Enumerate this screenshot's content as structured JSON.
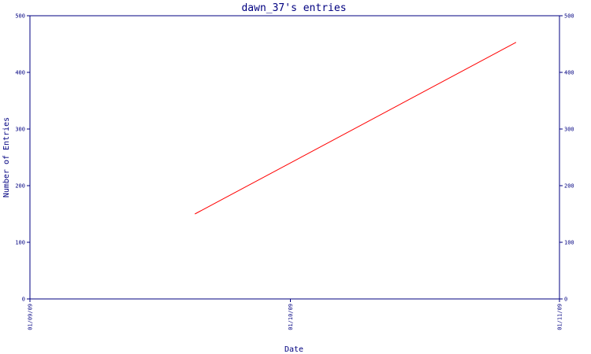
{
  "chart_data": {
    "type": "line",
    "title": "dawn_37's entries",
    "xlabel": "Date",
    "ylabel": "Number of Entries",
    "x_ticks": [
      "01/09/09",
      "01/10/09",
      "01/11/09"
    ],
    "ylim": [
      0,
      500
    ],
    "y_ticks": [
      0,
      100,
      200,
      300,
      400,
      500
    ],
    "series": [
      {
        "color": "#ff0000",
        "points": [
          {
            "x": "2009-09-20",
            "y": 150
          },
          {
            "x": "2009-10-27",
            "y": 453
          }
        ]
      }
    ],
    "grid": false,
    "right_axis_mirrored": true,
    "colors": {
      "axis": "#000080",
      "line": "#ff0000",
      "background": "#ffffff"
    }
  }
}
